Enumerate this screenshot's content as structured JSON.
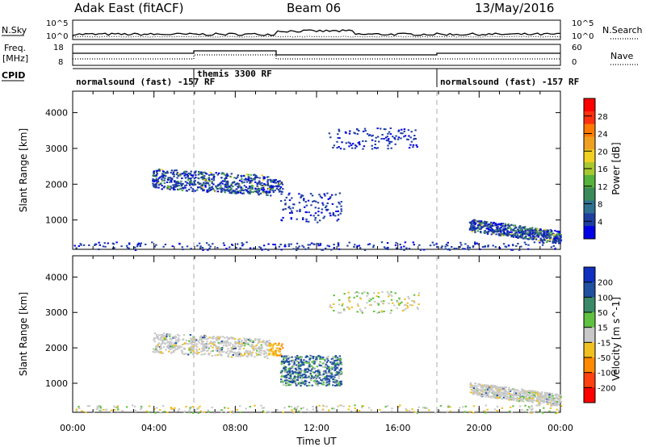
{
  "header": {
    "station": "Adak East (fitACF)",
    "beam": "Beam 06",
    "date": "13/May/2016"
  },
  "sky_panel": {
    "left_label": "N.Sky",
    "right_label": "N.Search",
    "left_ticks": [
      "10^5",
      "10^0"
    ],
    "right_ticks": [
      "10^5",
      "10^0"
    ]
  },
  "freq_panel": {
    "left_label_1": "Freq.",
    "left_label_2": "[MHz]",
    "right_label": "Nave",
    "left_ticks": [
      "18",
      "8"
    ],
    "right_ticks": [
      "60",
      "0"
    ]
  },
  "cpid": {
    "label": "CPID",
    "segments": [
      {
        "name": "normalsound (fast) -157 RF",
        "start_hour": 0,
        "end_hour": 6
      },
      {
        "name": "themis 3300 RF",
        "start_hour": 6,
        "end_hour": 18
      },
      {
        "name": "normalsound (fast) -157 RF",
        "start_hour": 18,
        "end_hour": 24
      }
    ]
  },
  "chart_data": [
    {
      "type": "heatmap",
      "title": "",
      "xlabel": "",
      "ylabel": "Slant Range [km]",
      "xlim": [
        0,
        24
      ],
      "ylim": [
        180,
        4600
      ],
      "yticks": [
        1000,
        2000,
        3000,
        4000
      ],
      "colorbar": {
        "label": "Power [dB]",
        "ticks": [
          "4",
          "8",
          "12",
          "16",
          "20",
          "24",
          "28"
        ],
        "colors": [
          "#0000e6",
          "#1f3f9f",
          "#2f6f8f",
          "#3a8a5a",
          "#56b33c",
          "#a8c830",
          "#f0d020",
          "#f0a020",
          "#ff7a00",
          "#ff3010",
          "#ff0000"
        ]
      },
      "echo_regions": [
        {
          "t0": 3.9,
          "t1": 9.7,
          "r0": 1700,
          "r1": 2450,
          "level": "mid"
        },
        {
          "t0": 9.6,
          "t1": 10.3,
          "r0": 1800,
          "r1": 2150,
          "level": "mid"
        },
        {
          "t0": 10.2,
          "t1": 13.2,
          "r0": 950,
          "r1": 1800,
          "level": "low"
        },
        {
          "t0": 19.5,
          "t1": 24,
          "r0": 350,
          "r1": 1050,
          "level": "mid"
        },
        {
          "t0": 0,
          "t1": 24,
          "r0": 180,
          "r1": 400,
          "level": "low"
        },
        {
          "t0": 12.5,
          "t1": 17,
          "r0": 3000,
          "r1": 3600,
          "level": "low"
        }
      ]
    },
    {
      "type": "heatmap",
      "title": "",
      "xlabel": "Time UT",
      "ylabel": "Slant Range [km]",
      "xlim": [
        0,
        24
      ],
      "ylim": [
        180,
        4600
      ],
      "xticks": [
        "00:00",
        "04:00",
        "08:00",
        "12:00",
        "16:00",
        "20:00",
        "00:00"
      ],
      "yticks": [
        1000,
        2000,
        3000,
        4000
      ],
      "colorbar": {
        "label": "Velocity [m s^-1]",
        "ticks": [
          "200",
          "100",
          "50",
          "15",
          "-15",
          "-50",
          "-100",
          "-200"
        ],
        "colors": [
          "#1030c0",
          "#2050a0",
          "#3a8a6a",
          "#60c040",
          "#c8c8c8",
          "#f0c020",
          "#ff8a00",
          "#ff4010",
          "#ff0000"
        ]
      },
      "echo_regions": [
        {
          "t0": 3.9,
          "t1": 9.7,
          "r0": 1700,
          "r1": 2450,
          "level": "grey"
        },
        {
          "t0": 9.6,
          "t1": 10.3,
          "r0": 1800,
          "r1": 2150,
          "level": "orange"
        },
        {
          "t0": 10.2,
          "t1": 13.2,
          "r0": 950,
          "r1": 1800,
          "level": "blue"
        },
        {
          "t0": 19.5,
          "t1": 24,
          "r0": 350,
          "r1": 1050,
          "level": "grey"
        },
        {
          "t0": 0,
          "t1": 24,
          "r0": 180,
          "r1": 400,
          "level": "low"
        },
        {
          "t0": 12.5,
          "t1": 17,
          "r0": 3000,
          "r1": 3600,
          "level": "low"
        }
      ]
    }
  ]
}
